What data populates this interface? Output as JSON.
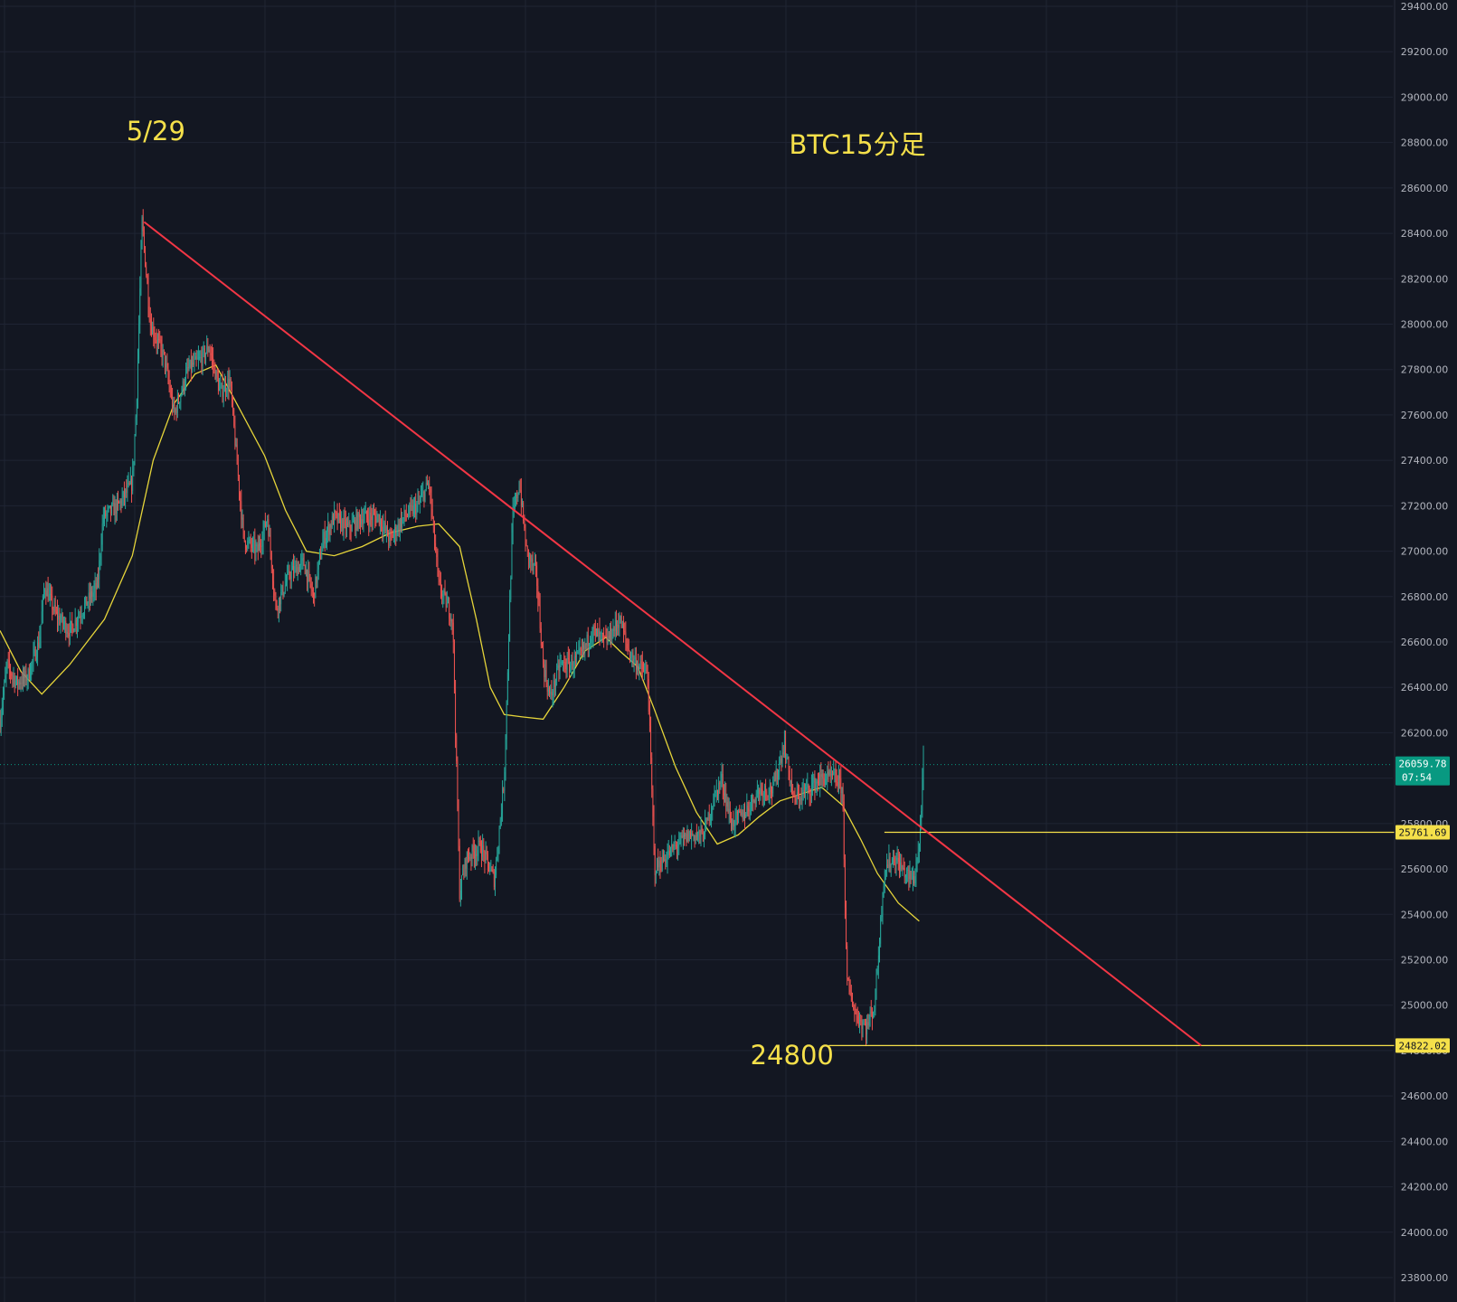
{
  "chart_data": {
    "type": "candlestick",
    "title": "BTC15分足",
    "annotations": [
      {
        "text": "5/29",
        "kind": "date-label"
      },
      {
        "text": "BTC15分足",
        "kind": "title-label"
      },
      {
        "text": "24800",
        "kind": "price-label"
      }
    ],
    "y_axis": {
      "min": 23800,
      "max": 29400,
      "step": 200,
      "ticks": [
        "23800.00",
        "24000.00",
        "24200.00",
        "24400.00",
        "24600.00",
        "24800.00",
        "25000.00",
        "25200.00",
        "25400.00",
        "25600.00",
        "25800.00",
        "26000.00",
        "26200.00",
        "26400.00",
        "26600.00",
        "26800.00",
        "27000.00",
        "27200.00",
        "27400.00",
        "27600.00",
        "27800.00",
        "28000.00",
        "28200.00",
        "28400.00",
        "28600.00",
        "28800.00",
        "29000.00",
        "29200.00",
        "29400.00"
      ]
    },
    "grid": true,
    "price_badges": [
      {
        "value": "26059.78",
        "sub": "07:54",
        "role": "current-price",
        "color": "#089981",
        "price": 26059.78
      },
      {
        "value": "25761.69",
        "role": "resistance-level",
        "color": "#f5e04a",
        "price": 25761.69
      },
      {
        "value": "24822.02",
        "role": "support-level",
        "color": "#f5e04a",
        "price": 24822.02
      }
    ],
    "trendline": {
      "color": "#f23645",
      "points": [
        [
          0.1035,
          28450
        ],
        [
          0.8625,
          24822
        ]
      ]
    },
    "horizontal_lines": [
      {
        "price": 25761.69,
        "from": 0.635,
        "color": "#f5e04a"
      },
      {
        "price": 24822.02,
        "from": 0.595,
        "color": "#f5e04a"
      }
    ],
    "price_path": [
      [
        0.0,
        26250
      ],
      [
        0.005,
        26500
      ],
      [
        0.012,
        26420
      ],
      [
        0.02,
        26450
      ],
      [
        0.028,
        26600
      ],
      [
        0.032,
        26850
      ],
      [
        0.04,
        26720
      ],
      [
        0.05,
        26650
      ],
      [
        0.06,
        26750
      ],
      [
        0.07,
        26850
      ],
      [
        0.074,
        27150
      ],
      [
        0.085,
        27200
      ],
      [
        0.095,
        27300
      ],
      [
        0.098,
        27650
      ],
      [
        0.102,
        28450
      ],
      [
        0.108,
        28000
      ],
      [
        0.118,
        27850
      ],
      [
        0.125,
        27600
      ],
      [
        0.135,
        27800
      ],
      [
        0.145,
        27850
      ],
      [
        0.15,
        27900
      ],
      [
        0.158,
        27700
      ],
      [
        0.165,
        27750
      ],
      [
        0.17,
        27400
      ],
      [
        0.175,
        27050
      ],
      [
        0.185,
        27000
      ],
      [
        0.192,
        27150
      ],
      [
        0.198,
        26750
      ],
      [
        0.208,
        26900
      ],
      [
        0.218,
        26950
      ],
      [
        0.225,
        26800
      ],
      [
        0.232,
        27050
      ],
      [
        0.24,
        27150
      ],
      [
        0.25,
        27100
      ],
      [
        0.26,
        27150
      ],
      [
        0.272,
        27150
      ],
      [
        0.28,
        27050
      ],
      [
        0.29,
        27150
      ],
      [
        0.3,
        27200
      ],
      [
        0.308,
        27300
      ],
      [
        0.315,
        26850
      ],
      [
        0.325,
        26700
      ],
      [
        0.33,
        25500
      ],
      [
        0.335,
        25650
      ],
      [
        0.345,
        25700
      ],
      [
        0.355,
        25550
      ],
      [
        0.362,
        26000
      ],
      [
        0.368,
        27150
      ],
      [
        0.373,
        27300
      ],
      [
        0.378,
        27000
      ],
      [
        0.385,
        26900
      ],
      [
        0.39,
        26500
      ],
      [
        0.395,
        26350
      ],
      [
        0.402,
        26500
      ],
      [
        0.41,
        26500
      ],
      [
        0.418,
        26550
      ],
      [
        0.425,
        26650
      ],
      [
        0.435,
        26600
      ],
      [
        0.445,
        26700
      ],
      [
        0.452,
        26550
      ],
      [
        0.458,
        26500
      ],
      [
        0.465,
        26450
      ],
      [
        0.47,
        25600
      ],
      [
        0.478,
        25650
      ],
      [
        0.485,
        25700
      ],
      [
        0.495,
        25750
      ],
      [
        0.505,
        25750
      ],
      [
        0.512,
        25900
      ],
      [
        0.518,
        26000
      ],
      [
        0.525,
        25800
      ],
      [
        0.535,
        25850
      ],
      [
        0.545,
        25950
      ],
      [
        0.555,
        25950
      ],
      [
        0.563,
        26150
      ],
      [
        0.57,
        25900
      ],
      [
        0.58,
        25950
      ],
      [
        0.59,
        26000
      ],
      [
        0.6,
        26000
      ],
      [
        0.605,
        25950
      ],
      [
        0.608,
        25100
      ],
      [
        0.615,
        24950
      ],
      [
        0.622,
        24900
      ],
      [
        0.628,
        25000
      ],
      [
        0.635,
        25600
      ],
      [
        0.642,
        25650
      ],
      [
        0.65,
        25580
      ],
      [
        0.656,
        25550
      ],
      [
        0.66,
        25700
      ],
      [
        0.663,
        26060
      ]
    ],
    "moving_average": [
      [
        0.0,
        26650
      ],
      [
        0.015,
        26470
      ],
      [
        0.03,
        26370
      ],
      [
        0.05,
        26500
      ],
      [
        0.075,
        26700
      ],
      [
        0.095,
        26980
      ],
      [
        0.11,
        27400
      ],
      [
        0.125,
        27650
      ],
      [
        0.14,
        27780
      ],
      [
        0.155,
        27820
      ],
      [
        0.17,
        27650
      ],
      [
        0.19,
        27420
      ],
      [
        0.205,
        27180
      ],
      [
        0.22,
        27000
      ],
      [
        0.24,
        26980
      ],
      [
        0.26,
        27020
      ],
      [
        0.28,
        27080
      ],
      [
        0.3,
        27110
      ],
      [
        0.315,
        27120
      ],
      [
        0.33,
        27020
      ],
      [
        0.342,
        26700
      ],
      [
        0.352,
        26400
      ],
      [
        0.362,
        26280
      ],
      [
        0.375,
        26270
      ],
      [
        0.39,
        26260
      ],
      [
        0.405,
        26400
      ],
      [
        0.42,
        26560
      ],
      [
        0.435,
        26620
      ],
      [
        0.445,
        26560
      ],
      [
        0.458,
        26490
      ],
      [
        0.47,
        26300
      ],
      [
        0.485,
        26050
      ],
      [
        0.5,
        25850
      ],
      [
        0.515,
        25710
      ],
      [
        0.53,
        25750
      ],
      [
        0.545,
        25830
      ],
      [
        0.56,
        25900
      ],
      [
        0.575,
        25930
      ],
      [
        0.59,
        25960
      ],
      [
        0.605,
        25880
      ],
      [
        0.618,
        25730
      ],
      [
        0.63,
        25580
      ],
      [
        0.645,
        25450
      ],
      [
        0.66,
        25370
      ]
    ],
    "x_annotations": {
      "date_label_x": 0.107,
      "title_x": 0.588,
      "price_label_x": 0.54
    }
  }
}
